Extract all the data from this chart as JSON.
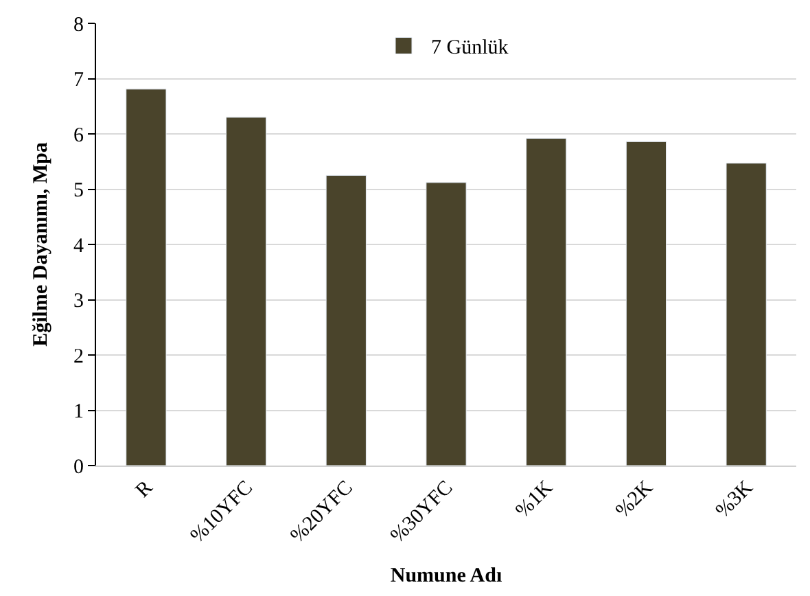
{
  "chart_data": {
    "type": "bar",
    "xlabel": "Numune Adı",
    "ylabel": "Eğilme Dayanımı, Mpa",
    "categories": [
      "R",
      "%10YFC",
      "%20YFC",
      "%30YFC",
      "%1K",
      "%2K",
      "%3K"
    ],
    "series": [
      {
        "name": "7 Günlük",
        "color": "#4a442b",
        "values": [
          6.81,
          6.3,
          5.25,
          5.12,
          5.92,
          5.86,
          5.47
        ]
      }
    ],
    "ylim": [
      0,
      8
    ],
    "yticks": [
      0,
      1,
      2,
      3,
      4,
      5,
      6,
      7,
      8
    ],
    "grid": "y",
    "legend": "top"
  }
}
